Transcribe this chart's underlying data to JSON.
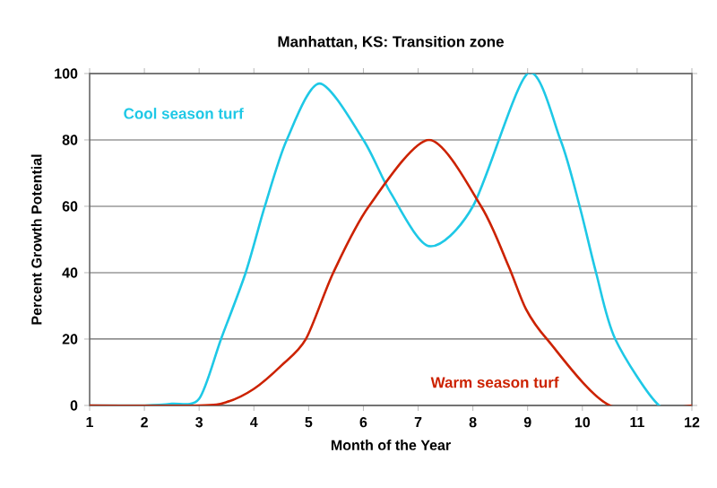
{
  "chart_data": {
    "type": "line",
    "title": "Manhattan, KS: Transition zone",
    "xlabel": "Month of the Year",
    "ylabel": "Percent Growth Potential",
    "xlim": [
      1,
      12
    ],
    "xticks": [
      1,
      2,
      3,
      4,
      5,
      6,
      7,
      8,
      9,
      10,
      11,
      12
    ],
    "ylim": [
      0,
      100
    ],
    "yticks": [
      0,
      20,
      40,
      60,
      80,
      100
    ],
    "grid": "y",
    "marker": "none",
    "line_style": "solid",
    "series": [
      {
        "name": "Cool season turf",
        "color": "#1ec8e6",
        "x": [
          1,
          2,
          2.5,
          3,
          3.4,
          3.85,
          4.2,
          4.6,
          5.2,
          6.0,
          6.5,
          7.2,
          8.0,
          9.0,
          9.6,
          9.95,
          10.25,
          10.6,
          11.4,
          12
        ],
        "values": [
          0,
          0,
          0.5,
          2,
          20,
          40,
          60,
          80,
          97,
          80,
          64,
          48,
          60,
          100,
          80,
          60,
          40,
          20,
          0,
          0
        ]
      },
      {
        "name": "Warm season turf",
        "color": "#cc2200",
        "x": [
          1,
          3,
          3.5,
          4,
          4.5,
          4.95,
          5.45,
          6.1,
          7.2,
          8.15,
          8.65,
          8.97,
          9.35,
          10.5,
          12
        ],
        "values": [
          0,
          0,
          1,
          5,
          12,
          20,
          40,
          60,
          80,
          60,
          42,
          29,
          20,
          0,
          0
        ]
      }
    ]
  }
}
